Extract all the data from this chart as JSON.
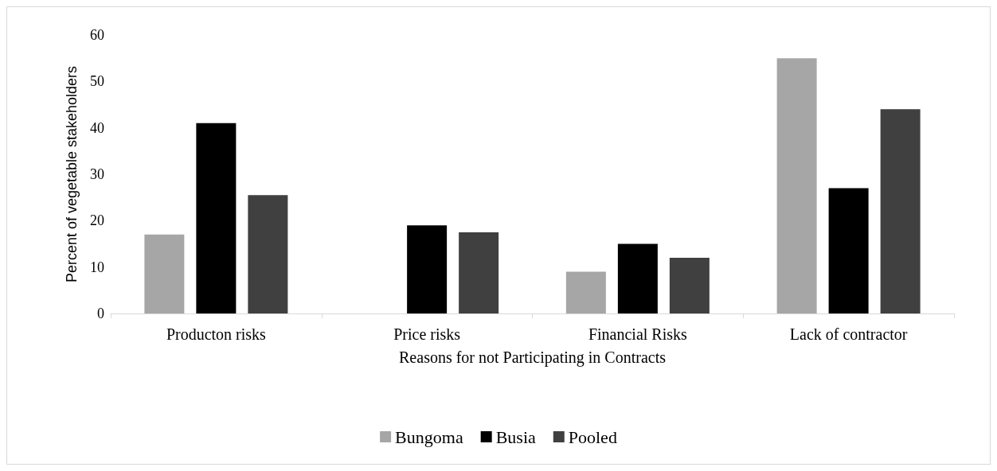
{
  "chart_data": {
    "type": "bar",
    "xlabel": "Reasons for not Participating in Contracts",
    "ylabel": "Percent of vegetable stakeholders",
    "categories": [
      "Producton risks",
      "Price risks",
      "Financial Risks",
      "Lack of contractor"
    ],
    "series": [
      {
        "name": "Bungoma",
        "color": "#a6a6a6",
        "values": [
          17,
          0,
          9,
          55
        ]
      },
      {
        "name": "Busia",
        "color": "#000000",
        "values": [
          41,
          19,
          15,
          27
        ]
      },
      {
        "name": "Pooled",
        "color": "#404040",
        "values": [
          25.5,
          17.5,
          12,
          44
        ]
      }
    ],
    "ylim": [
      0,
      60
    ],
    "yticks": [
      0,
      10,
      20,
      30,
      40,
      50,
      60
    ],
    "grid": false,
    "legend": "bottom"
  }
}
